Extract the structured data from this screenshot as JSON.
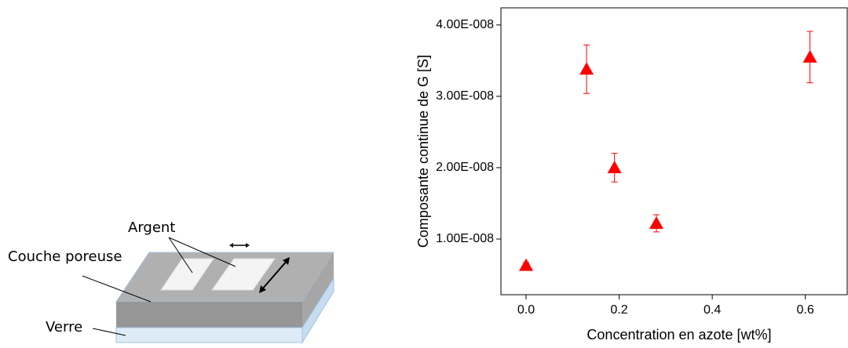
{
  "diagram": {
    "labels": [
      "Argent",
      "Couche poreuse",
      "Verre"
    ]
  },
  "chart_data": {
    "type": "scatter",
    "x_label": "Concentration en azote [wt%]",
    "y_label": "Composante continue de G [S]",
    "series": [
      {
        "color": "#ff0000",
        "marker": "triangle",
        "x": [
          0.0,
          0.13,
          0.19,
          0.28,
          0.61
        ],
        "values": [
          6.3e-09,
          3.38e-08,
          2e-08,
          1.22e-08,
          3.55e-08
        ],
        "errors": [
          4e-10,
          3.4e-09,
          2e-09,
          1.2e-09,
          3.6e-09
        ]
      }
    ],
    "xlim": [
      -0.054,
      0.69
    ],
    "ylim": [
      2.2e-09,
      4.24e-08
    ],
    "xticks": [
      {
        "value": 0,
        "label": "0.0"
      },
      0.2,
      0.4,
      0.6
    ],
    "yticks": [
      {
        "value": 1e-08,
        "label": "1.00E-008"
      },
      {
        "value": 2e-08,
        "label": "2.00E-008"
      },
      {
        "value": 3e-08,
        "label": "3.00E-008"
      },
      {
        "value": 4e-08,
        "label": "4.00E-008"
      }
    ]
  }
}
